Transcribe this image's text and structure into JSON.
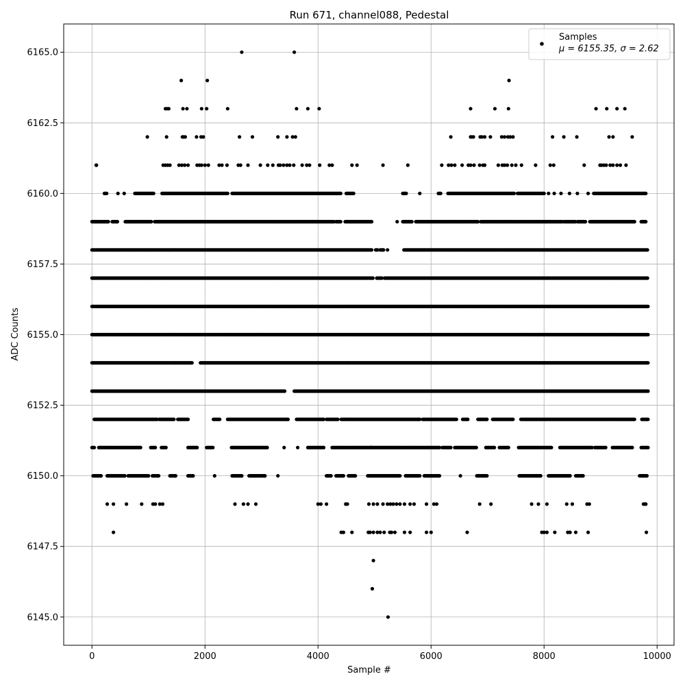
{
  "chart_data": {
    "type": "scatter",
    "title": "Run 671, channel088, Pedestal",
    "xlabel": "Sample #",
    "ylabel": "ADC Counts",
    "xlim": [
      -500,
      10300
    ],
    "ylim": [
      6144.0,
      6166.0
    ],
    "xticks": [
      0,
      2000,
      4000,
      6000,
      8000,
      10000
    ],
    "xtick_labels": [
      "0",
      "2000",
      "4000",
      "6000",
      "8000",
      "10000"
    ],
    "yticks": [
      6145.0,
      6147.5,
      6150.0,
      6152.5,
      6155.0,
      6157.5,
      6160.0,
      6162.5,
      6165.0
    ],
    "ytick_labels": [
      "6145.0",
      "6147.5",
      "6150.0",
      "6152.5",
      "6155.0",
      "6157.5",
      "6160.0",
      "6162.5",
      "6165.0"
    ],
    "grid": true,
    "legend_position": "top-right",
    "marker_color": "#000000",
    "series": [
      {
        "name": "Samples",
        "label_line2": "μ = 6155.35, σ = 2.62",
        "mean": 6155.35,
        "sigma": 2.62,
        "n_samples": 9820,
        "level_spans": [
          {
            "y": 6165,
            "x": [
              2650,
              3580
            ]
          },
          {
            "y": 6164,
            "x": [
              1580,
              2040,
              7380
            ]
          },
          {
            "y": 6163,
            "x": [
              1300,
              1330,
              1360,
              1610,
              1680,
              1940,
              2030,
              2400,
              3620,
              3820,
              4020,
              6700,
              7130,
              7370,
              8920,
              9110,
              9290,
              9430
            ]
          },
          {
            "y": 6162,
            "x": [
              980,
              1320,
              1600,
              1620,
              1650,
              1850,
              1930,
              1970,
              2610,
              2840,
              3290,
              3450,
              3550,
              3600,
              6350,
              6700,
              6720,
              6750,
              6870,
              6900,
              6950,
              7050,
              7250,
              7300,
              7360,
              7400,
              7450,
              8150,
              8350,
              8580,
              9150,
              9220,
              9560
            ]
          },
          {
            "y": 6161,
            "x": [
              75,
              80,
              1260,
              1300,
              1340,
              1380,
              1540,
              1590,
              1640,
              1700,
              1860,
              1900,
              1940,
              2000,
              2060,
              2250,
              2300,
              2390,
              2590,
              2630,
              2760,
              2980,
              3110,
              3200,
              3300,
              3330,
              3390,
              3450,
              3500,
              3570,
              3720,
              3800,
              3850,
              4030,
              4200,
              4250,
              4600,
              4690,
              5150,
              5590,
              6190,
              6310,
              6360,
              6420,
              6550,
              6660,
              6700,
              6760,
              6860,
              6920,
              6950,
              7190,
              7260,
              7300,
              7350,
              7430,
              7500,
              7600,
              7850,
              8110,
              8170,
              8710,
              8990,
              9020,
              9060,
              9100,
              9170,
              9220,
              9290,
              9350,
              9450
            ]
          },
          {
            "y": 6160,
            "x": [
              [
                220,
                260
              ],
              460,
              570,
              [
                760,
                1090
              ],
              [
                1240,
                2400
              ],
              [
                2480,
                4400
              ],
              [
                4500,
                4630
              ],
              [
                5500,
                5560
              ],
              5800,
              [
                6130,
                6170
              ],
              [
                6300,
                7470
              ],
              [
                7530,
                8000
              ],
              8080,
              8180,
              8300,
              8450,
              8590,
              8780,
              [
                8880,
                9800
              ]
            ]
          },
          {
            "y": 6159,
            "x": [
              [
                0,
                290
              ],
              [
                360,
                450
              ],
              [
                590,
                1050
              ],
              [
                1110,
                4280
              ],
              [
                4320,
                4400
              ],
              [
                4480,
                4950
              ],
              5400,
              [
                5500,
                5660
              ],
              [
                5730,
                6830
              ],
              [
                6880,
                8320
              ],
              [
                8350,
                8550
              ],
              [
                8590,
                8730
              ],
              [
                8810,
                9600
              ],
              [
                9720,
                9800
              ]
            ]
          },
          {
            "y": 6158,
            "x": [
              [
                0,
                4950
              ],
              [
                5020,
                5050
              ],
              [
                5100,
                5160
              ],
              5230,
              [
                5520,
                9830
              ]
            ]
          },
          {
            "y": 6157,
            "x": [
              [
                0,
                4970
              ],
              [
                5040,
                5130
              ],
              [
                5180,
                9830
              ]
            ]
          },
          {
            "y": 6156,
            "x": [
              [
                0,
                9840
              ]
            ]
          },
          {
            "y": 6155,
            "x": [
              [
                0,
                9840
              ]
            ]
          },
          {
            "y": 6154,
            "x": [
              [
                0,
                1770
              ],
              [
                1920,
                9840
              ]
            ]
          },
          {
            "y": 6153,
            "x": [
              [
                0,
                3410
              ],
              [
                3580,
                9840
              ]
            ]
          },
          {
            "y": 6152,
            "x": [
              [
                40,
                1150
              ],
              [
                1190,
                1450
              ],
              [
                1520,
                1700
              ],
              [
                2150,
                2260
              ],
              [
                2400,
                3470
              ],
              [
                3620,
                4100
              ],
              [
                4150,
                4350
              ],
              [
                4410,
                5800
              ],
              [
                5850,
                6450
              ],
              [
                6560,
                6650
              ],
              [
                6830,
                6990
              ],
              [
                7090,
                7450
              ],
              [
                7590,
                9600
              ],
              [
                9730,
                9840
              ]
            ]
          },
          {
            "y": 6151,
            "x": [
              [
                0,
                40
              ],
              [
                120,
                860
              ],
              [
                1040,
                1120
              ],
              [
                1230,
                1310
              ],
              [
                1700,
                1860
              ],
              [
                2030,
                2140
              ],
              [
                2470,
                3100
              ],
              3400,
              3640,
              [
                3820,
                4100
              ],
              [
                4250,
                4950
              ],
              [
                4930,
                6150
              ],
              [
                6200,
                6350
              ],
              [
                6420,
                6800
              ],
              [
                6970,
                7120
              ],
              [
                7210,
                7370
              ],
              [
                7550,
                8130
              ],
              [
                8280,
                8850
              ],
              [
                8900,
                9090
              ],
              [
                9210,
                9560
              ],
              [
                9720,
                9840
              ]
            ]
          },
          {
            "y": 6150,
            "x": [
              [
                20,
                160
              ],
              [
                270,
                580
              ],
              [
                640,
                1000
              ],
              [
                1070,
                1180
              ],
              [
                1380,
                1480
              ],
              [
                1700,
                1790
              ],
              2170,
              [
                2480,
                2650
              ],
              [
                2780,
                3060
              ],
              3290,
              [
                4150,
                4230
              ],
              [
                4320,
                4450
              ],
              [
                4540,
                4660
              ],
              [
                4880,
                5450
              ],
              [
                5550,
                5800
              ],
              [
                5880,
                6150
              ],
              6520,
              [
                6810,
                6990
              ],
              [
                7560,
                7940
              ],
              [
                8080,
                8460
              ],
              [
                8560,
                8690
              ],
              [
                9690,
                9820
              ]
            ]
          },
          {
            "y": 6149,
            "x": [
              270,
              380,
              610,
              880,
              1080,
              1120,
              1200,
              1250,
              2530,
              2680,
              2760,
              2900,
              4000,
              4050,
              4150,
              4490,
              4520,
              4900,
              4980,
              5050,
              5150,
              5230,
              5280,
              5330,
              5390,
              5450,
              5530,
              5630,
              5700,
              5920,
              6050,
              6100,
              6860,
              7060,
              7780,
              7900,
              8050,
              8400,
              8500,
              8760,
              8800,
              9760,
              9790,
              9800
            ]
          },
          {
            "y": 6148,
            "x": [
              380,
              4410,
              4450,
              4600,
              4890,
              4920,
              4980,
              5050,
              5100,
              5170,
              5270,
              5300,
              5360,
              5530,
              5630,
              5920,
              6000,
              6640,
              7960,
              8000,
              8050,
              8190,
              8420,
              8460,
              8560,
              8780,
              9810
            ]
          },
          {
            "y": 6147,
            "x": [
              4980
            ]
          },
          {
            "y": 6146,
            "x": [
              4960
            ]
          },
          {
            "y": 6145,
            "x": [
              5240
            ]
          }
        ]
      }
    ]
  }
}
